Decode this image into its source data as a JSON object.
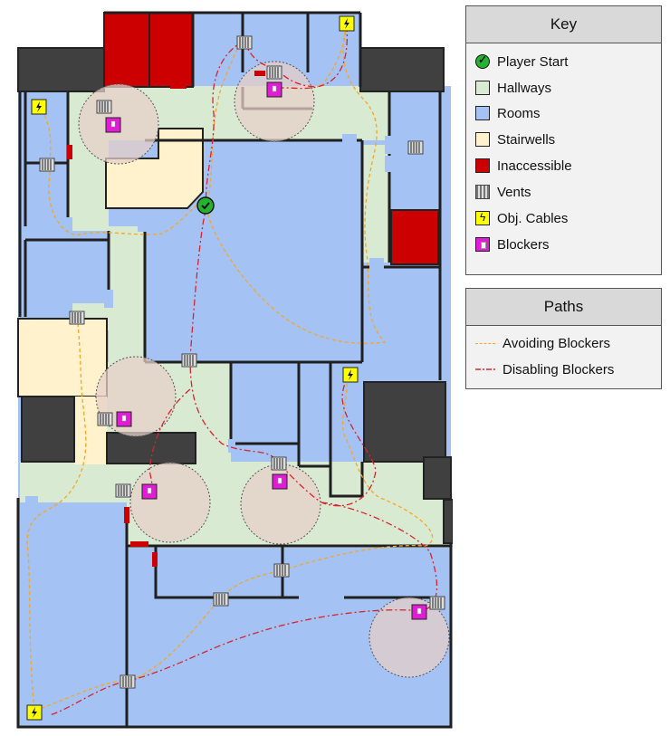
{
  "key": {
    "title": "Key",
    "items": [
      {
        "label": "Player Start",
        "icon": "player-start-icon",
        "color": "#22b32f"
      },
      {
        "label": "Hallways",
        "icon": "hallway-swatch",
        "color": "#d9ead3"
      },
      {
        "label": "Rooms",
        "icon": "room-swatch",
        "color": "#a4c2f4"
      },
      {
        "label": "Stairwells",
        "icon": "stairwell-swatch",
        "color": "#fff2cc"
      },
      {
        "label": "Inaccessible",
        "icon": "inaccessible-swatch",
        "color": "#cc0000"
      },
      {
        "label": "Vents",
        "icon": "vent-icon",
        "color": "#808080"
      },
      {
        "label": "Obj. Cables",
        "icon": "cable-icon",
        "color": "#ffff00"
      },
      {
        "label": "Blockers",
        "icon": "blocker-icon",
        "color": "#e21bd6"
      }
    ]
  },
  "paths": {
    "title": "Paths",
    "items": [
      {
        "label": "Avoiding Blockers",
        "style": "dashed",
        "color": "#f6a623"
      },
      {
        "label": "Disabling Blockers",
        "style": "dash-dot",
        "color": "#d9232e"
      }
    ]
  },
  "colors": {
    "wall": "#1f1f1f",
    "dark_block": "#404040",
    "hallway": "#d9ead3",
    "room": "#a4c2f4",
    "stairwell": "#fff2cc",
    "inaccessible": "#cc0000",
    "blocker_radius": "#e6cfc8"
  }
}
